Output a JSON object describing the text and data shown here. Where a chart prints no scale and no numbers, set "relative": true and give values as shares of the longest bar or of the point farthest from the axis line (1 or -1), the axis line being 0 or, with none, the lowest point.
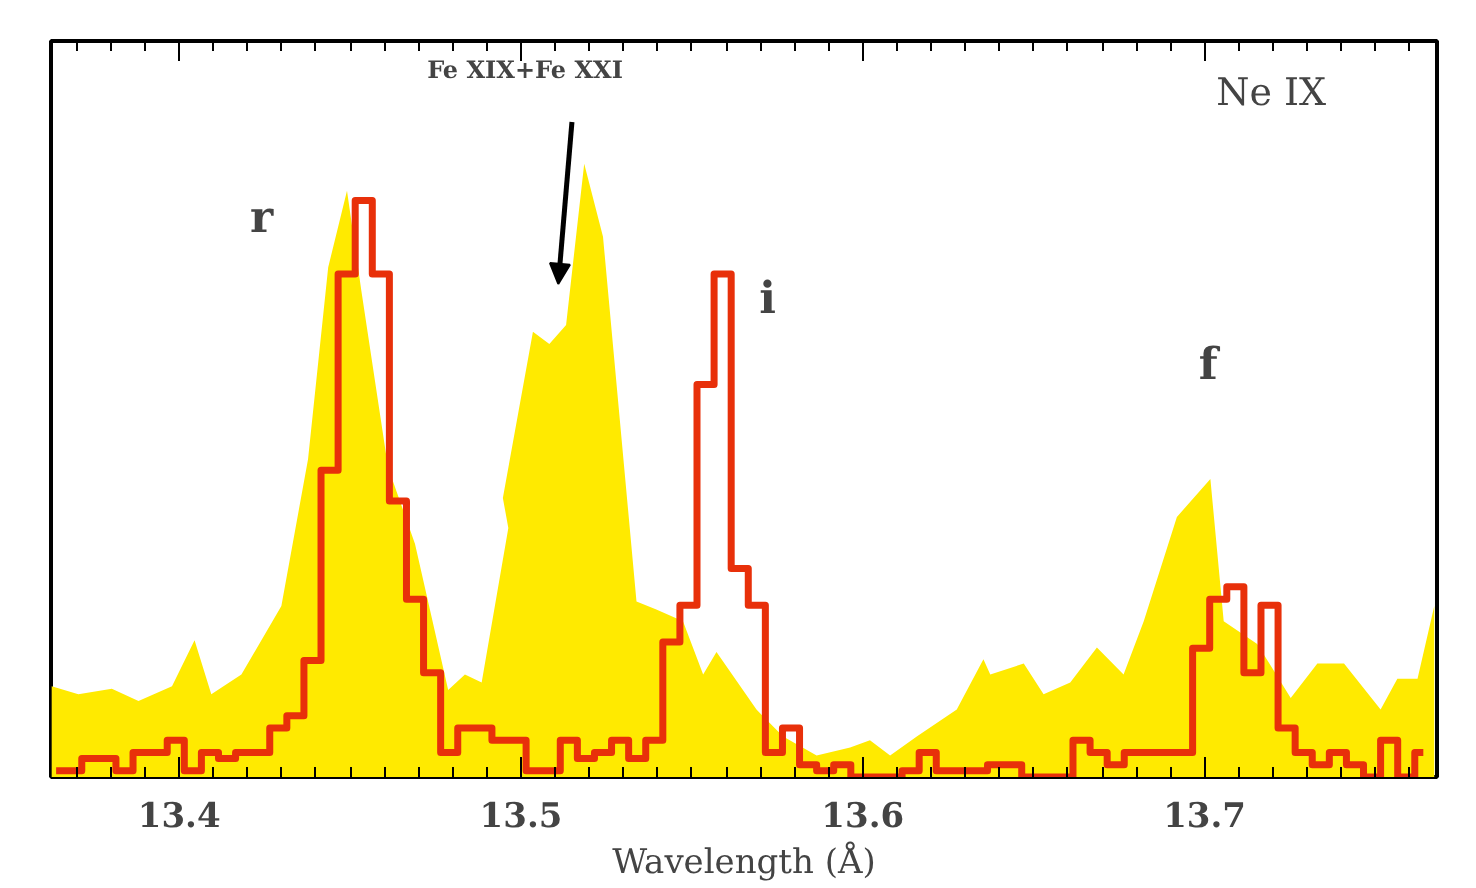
{
  "chart_data": {
    "type": "area",
    "relative": true,
    "xlabel": "Wavelength (Å)",
    "xlim": [
      13.3625,
      13.768
    ],
    "xticks": [
      13.4,
      13.5,
      13.6,
      13.7,
      {
        "value": 13.37,
        "label": null
      },
      {
        "value": 13.38,
        "label": null
      },
      {
        "value": 13.39,
        "label": null
      },
      {
        "value": 13.41,
        "label": null
      },
      {
        "value": 13.42,
        "label": null
      },
      {
        "value": 13.43,
        "label": null
      },
      {
        "value": 13.44,
        "label": null
      },
      {
        "value": 13.45,
        "label": null
      },
      {
        "value": 13.46,
        "label": null
      },
      {
        "value": 13.47,
        "label": null
      },
      {
        "value": 13.48,
        "label": null
      },
      {
        "value": 13.49,
        "label": null
      },
      {
        "value": 13.51,
        "label": null
      },
      {
        "value": 13.52,
        "label": null
      },
      {
        "value": 13.53,
        "label": null
      },
      {
        "value": 13.54,
        "label": null
      },
      {
        "value": 13.55,
        "label": null
      },
      {
        "value": 13.56,
        "label": null
      },
      {
        "value": 13.57,
        "label": null
      },
      {
        "value": 13.58,
        "label": null
      },
      {
        "value": 13.59,
        "label": null
      },
      {
        "value": 13.61,
        "label": null
      },
      {
        "value": 13.62,
        "label": null
      },
      {
        "value": 13.63,
        "label": null
      },
      {
        "value": 13.64,
        "label": null
      },
      {
        "value": 13.65,
        "label": null
      },
      {
        "value": 13.66,
        "label": null
      },
      {
        "value": 13.67,
        "label": null
      },
      {
        "value": 13.68,
        "label": null
      },
      {
        "value": 13.69,
        "label": null
      },
      {
        "value": 13.71,
        "label": null
      },
      {
        "value": 13.72,
        "label": null
      },
      {
        "value": 13.73,
        "label": null
      },
      {
        "value": 13.74,
        "label": null
      },
      {
        "value": 13.75,
        "label": null
      },
      {
        "value": 13.76,
        "label": null
      }
    ],
    "grid": false,
    "series": [
      {
        "color": "#ffea00",
        "x": [
          13.3627,
          13.3705,
          13.3803,
          13.3881,
          13.3979,
          13.4045,
          13.4094,
          13.4182,
          13.4299,
          13.4377,
          13.4436,
          13.4491,
          13.4533,
          13.4611,
          13.469,
          13.4787,
          13.4836,
          13.4885,
          13.4963,
          13.4947,
          13.5035,
          13.5083,
          13.5132,
          13.5185,
          13.524,
          13.5338,
          13.5396,
          13.5474,
          13.5533,
          13.5572,
          13.5689,
          13.5767,
          13.5865,
          13.5963,
          13.6021,
          13.608,
          13.6158,
          13.6275,
          13.6353,
          13.6373,
          13.6471,
          13.6529,
          13.6607,
          13.6685,
          13.6763,
          13.6822,
          13.6919,
          13.7017,
          13.7056,
          13.7154,
          13.7252,
          13.733,
          13.7408,
          13.7515,
          13.7564,
          13.7623,
          13.7672
        ],
        "values": [
          0.148,
          0.135,
          0.144,
          0.124,
          0.148,
          0.223,
          0.135,
          0.167,
          0.279,
          0.518,
          0.831,
          0.956,
          0.793,
          0.505,
          0.38,
          0.142,
          0.167,
          0.154,
          0.406,
          0.455,
          0.726,
          0.706,
          0.737,
          1.0,
          0.881,
          0.286,
          0.273,
          0.254,
          0.167,
          0.204,
          0.11,
          0.066,
          0.035,
          0.048,
          0.06,
          0.035,
          0.066,
          0.11,
          0.192,
          0.167,
          0.185,
          0.135,
          0.154,
          0.211,
          0.167,
          0.254,
          0.424,
          0.486,
          0.254,
          0.217,
          0.129,
          0.185,
          0.185,
          0.11,
          0.16,
          0.16,
          0.279
        ]
      },
      {
        "type": "step",
        "color": "#e8300a",
        "x": [
          13.364,
          13.369,
          13.374,
          13.379,
          13.384,
          13.389,
          13.394,
          13.399,
          13.404,
          13.409,
          13.414,
          13.419,
          13.424,
          13.429,
          13.434,
          13.439,
          13.444,
          13.449,
          13.454,
          13.459,
          13.464,
          13.469,
          13.474,
          13.479,
          13.484,
          13.489,
          13.494,
          13.499,
          13.504,
          13.509,
          13.514,
          13.519,
          13.524,
          13.529,
          13.534,
          13.539,
          13.544,
          13.549,
          13.554,
          13.559,
          13.564,
          13.569,
          13.574,
          13.579,
          13.584,
          13.589,
          13.594,
          13.599,
          13.604,
          13.609,
          13.614,
          13.619,
          13.624,
          13.629,
          13.634,
          13.639,
          13.644,
          13.649,
          13.654,
          13.659,
          13.664,
          13.669,
          13.674,
          13.679,
          13.684,
          13.689,
          13.694,
          13.699,
          13.704,
          13.709,
          13.714,
          13.719,
          13.724,
          13.729,
          13.734,
          13.739,
          13.744,
          13.749,
          13.754,
          13.759,
          13.764
        ],
        "values": [
          0.01,
          0.01,
          0.03,
          0.03,
          0.01,
          0.04,
          0.04,
          0.06,
          0.01,
          0.04,
          0.03,
          0.04,
          0.04,
          0.08,
          0.1,
          0.19,
          0.5,
          0.82,
          0.94,
          0.82,
          0.45,
          0.29,
          0.17,
          0.04,
          0.08,
          0.08,
          0.06,
          0.06,
          0.01,
          0.01,
          0.06,
          0.03,
          0.04,
          0.06,
          0.03,
          0.06,
          0.22,
          0.28,
          0.64,
          0.82,
          0.34,
          0.28,
          0.04,
          0.08,
          0.02,
          0.01,
          0.02,
          0.0,
          0.0,
          0.0,
          0.01,
          0.04,
          0.01,
          0.01,
          0.01,
          0.02,
          0.02,
          0.0,
          0.0,
          0.0,
          0.06,
          0.04,
          0.02,
          0.04,
          0.04,
          0.04,
          0.04,
          0.21,
          0.29,
          0.31,
          0.17,
          0.28,
          0.08,
          0.04,
          0.02,
          0.04,
          0.02,
          0.0,
          0.06,
          0.0,
          0.04
        ]
      }
    ],
    "annotations": [
      "r",
      "i",
      "f",
      "Fe XIX+Fe XXI",
      "Ne IX"
    ]
  }
}
